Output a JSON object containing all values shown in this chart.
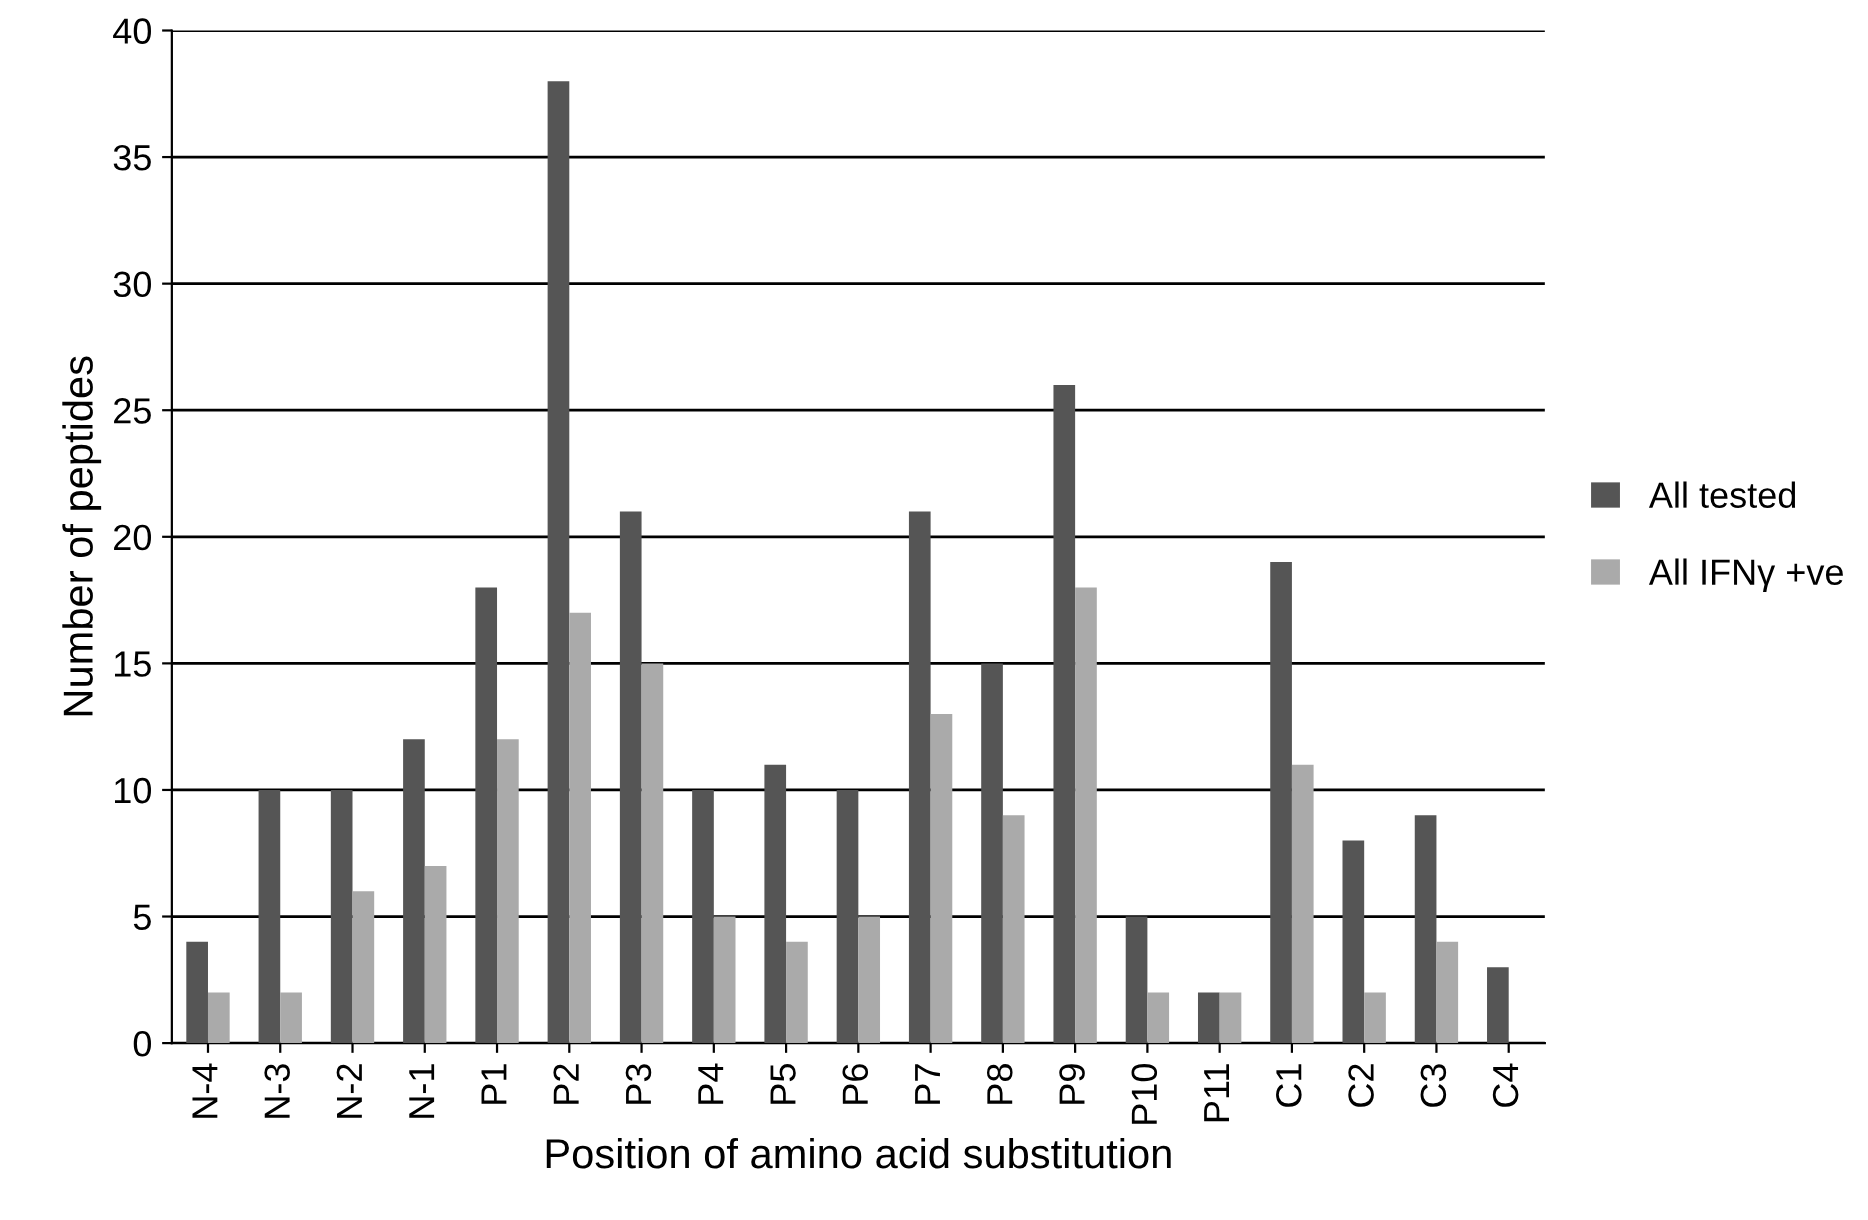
{
  "chart_data": {
    "type": "bar",
    "xlabel": "Position of amino acid substitution",
    "ylabel": "Number of peptides",
    "categories": [
      "N-4",
      "N-3",
      "N-2",
      "N-1",
      "P1",
      "P2",
      "P3",
      "P4",
      "P5",
      "P6",
      "P7",
      "P8",
      "P9",
      "P10",
      "P11",
      "C1",
      "C2",
      "C3",
      "C4"
    ],
    "series": [
      {
        "name": "All tested",
        "color": "#555555",
        "values": [
          4,
          10,
          10,
          12,
          18,
          38,
          21,
          10,
          11,
          10,
          21,
          15,
          26,
          5,
          2,
          19,
          8,
          9,
          3
        ]
      },
      {
        "name": "All IFNγ +ve",
        "color": "#aaaaaa",
        "values": [
          2,
          2,
          6,
          7,
          12,
          17,
          15,
          5,
          4,
          5,
          13,
          9,
          18,
          2,
          2,
          11,
          2,
          4,
          0
        ]
      }
    ],
    "ylim": [
      0,
      40
    ],
    "yticks": [
      0,
      5,
      10,
      15,
      20,
      25,
      30,
      35,
      40
    ],
    "grid": "y",
    "legend": "right"
  }
}
